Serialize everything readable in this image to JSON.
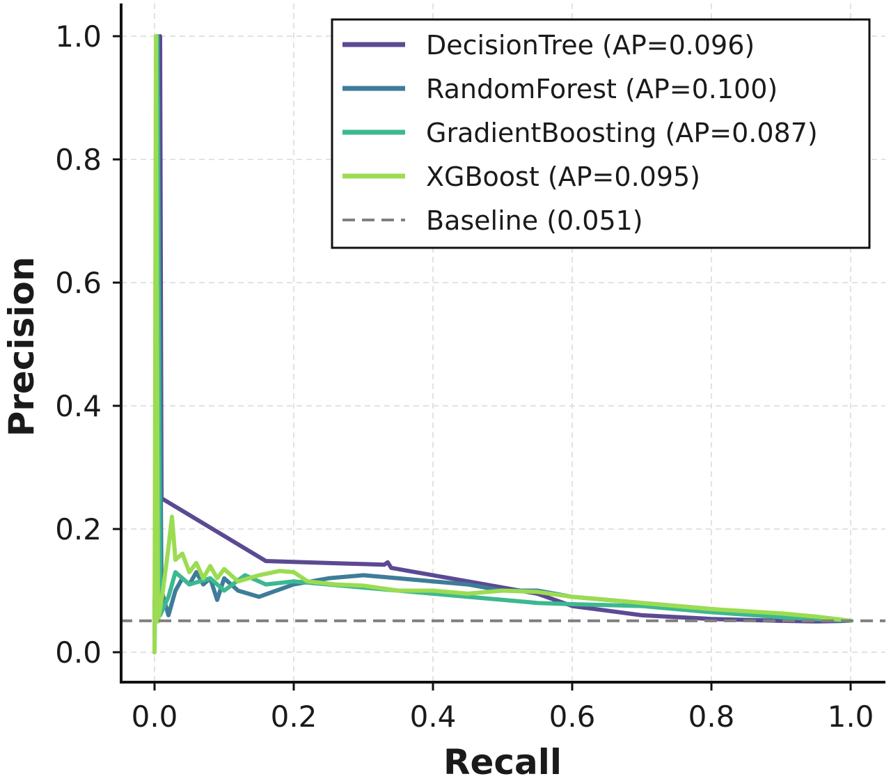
{
  "chart_data": {
    "type": "line",
    "xlabel": "Recall",
    "ylabel": "Precision",
    "xlim": [
      -0.05,
      1.05
    ],
    "ylim": [
      -0.05,
      1.05
    ],
    "xticks": [
      0.0,
      0.2,
      0.4,
      0.6,
      0.8,
      1.0
    ],
    "yticks": [
      0.0,
      0.2,
      0.4,
      0.6,
      0.8,
      1.0
    ],
    "xtick_labels": [
      "0.0",
      "0.2",
      "0.4",
      "0.6",
      "0.8",
      "1.0"
    ],
    "ytick_labels": [
      "0.0",
      "0.2",
      "0.4",
      "0.6",
      "0.8",
      "1.0"
    ],
    "grid": true,
    "legend_position": "top-right",
    "series": [
      {
        "name": "DecisionTree (AP=0.096)",
        "color": "#5b4a92",
        "dash": "solid",
        "points": [
          [
            0.0,
            0.0
          ],
          [
            0.0,
            0.08
          ],
          [
            0.005,
            0.2
          ],
          [
            0.008,
            1.0
          ],
          [
            0.01,
            0.25
          ],
          [
            0.16,
            0.148
          ],
          [
            0.33,
            0.142
          ],
          [
            0.335,
            0.146
          ],
          [
            0.34,
            0.137
          ],
          [
            0.55,
            0.095
          ],
          [
            0.6,
            0.075
          ],
          [
            0.7,
            0.06
          ],
          [
            0.8,
            0.054
          ],
          [
            0.9,
            0.051
          ],
          [
            0.95,
            0.05
          ],
          [
            1.0,
            0.051
          ]
        ]
      },
      {
        "name": "RandomForest (AP=0.100)",
        "color": "#3e7c99",
        "dash": "solid",
        "points": [
          [
            0.0,
            0.0
          ],
          [
            0.005,
            0.9
          ],
          [
            0.01,
            0.1
          ],
          [
            0.02,
            0.06
          ],
          [
            0.03,
            0.1
          ],
          [
            0.04,
            0.12
          ],
          [
            0.05,
            0.11
          ],
          [
            0.06,
            0.13
          ],
          [
            0.07,
            0.11
          ],
          [
            0.08,
            0.12
          ],
          [
            0.09,
            0.085
          ],
          [
            0.1,
            0.12
          ],
          [
            0.12,
            0.1
          ],
          [
            0.15,
            0.09
          ],
          [
            0.2,
            0.11
          ],
          [
            0.25,
            0.12
          ],
          [
            0.3,
            0.125
          ],
          [
            0.35,
            0.12
          ],
          [
            0.4,
            0.115
          ],
          [
            0.45,
            0.11
          ],
          [
            0.5,
            0.1
          ],
          [
            0.55,
            0.1
          ],
          [
            0.6,
            0.09
          ],
          [
            0.7,
            0.08
          ],
          [
            0.8,
            0.07
          ],
          [
            0.9,
            0.06
          ],
          [
            1.0,
            0.051
          ]
        ]
      },
      {
        "name": "GradientBoosting (AP=0.087)",
        "color": "#3db890",
        "dash": "solid",
        "points": [
          [
            0.0,
            0.0
          ],
          [
            0.004,
            1.0
          ],
          [
            0.008,
            0.06
          ],
          [
            0.02,
            0.09
          ],
          [
            0.03,
            0.13
          ],
          [
            0.05,
            0.11
          ],
          [
            0.08,
            0.12
          ],
          [
            0.1,
            0.1
          ],
          [
            0.13,
            0.125
          ],
          [
            0.16,
            0.11
          ],
          [
            0.2,
            0.115
          ],
          [
            0.25,
            0.11
          ],
          [
            0.3,
            0.105
          ],
          [
            0.35,
            0.1
          ],
          [
            0.4,
            0.095
          ],
          [
            0.45,
            0.09
          ],
          [
            0.5,
            0.085
          ],
          [
            0.55,
            0.08
          ],
          [
            0.6,
            0.078
          ],
          [
            0.7,
            0.075
          ],
          [
            0.8,
            0.065
          ],
          [
            0.9,
            0.057
          ],
          [
            1.0,
            0.051
          ]
        ]
      },
      {
        "name": "XGBoost (AP=0.095)",
        "color": "#9bdc52",
        "dash": "solid",
        "points": [
          [
            0.0,
            0.0
          ],
          [
            0.002,
            1.0
          ],
          [
            0.005,
            0.05
          ],
          [
            0.012,
            0.1
          ],
          [
            0.02,
            0.17
          ],
          [
            0.025,
            0.22
          ],
          [
            0.03,
            0.15
          ],
          [
            0.04,
            0.16
          ],
          [
            0.05,
            0.13
          ],
          [
            0.06,
            0.145
          ],
          [
            0.07,
            0.12
          ],
          [
            0.08,
            0.14
          ],
          [
            0.09,
            0.12
          ],
          [
            0.1,
            0.135
          ],
          [
            0.12,
            0.115
          ],
          [
            0.15,
            0.125
          ],
          [
            0.18,
            0.132
          ],
          [
            0.2,
            0.13
          ],
          [
            0.22,
            0.115
          ],
          [
            0.26,
            0.11
          ],
          [
            0.3,
            0.108
          ],
          [
            0.35,
            0.1
          ],
          [
            0.4,
            0.1
          ],
          [
            0.45,
            0.095
          ],
          [
            0.5,
            0.1
          ],
          [
            0.55,
            0.098
          ],
          [
            0.6,
            0.09
          ],
          [
            0.7,
            0.08
          ],
          [
            0.8,
            0.07
          ],
          [
            0.9,
            0.063
          ],
          [
            0.95,
            0.058
          ],
          [
            1.0,
            0.051
          ]
        ]
      },
      {
        "name": "Baseline (0.051)",
        "color": "#808080",
        "dash": "dashed",
        "points": [
          [
            -0.05,
            0.051
          ],
          [
            1.05,
            0.051
          ]
        ]
      }
    ]
  }
}
